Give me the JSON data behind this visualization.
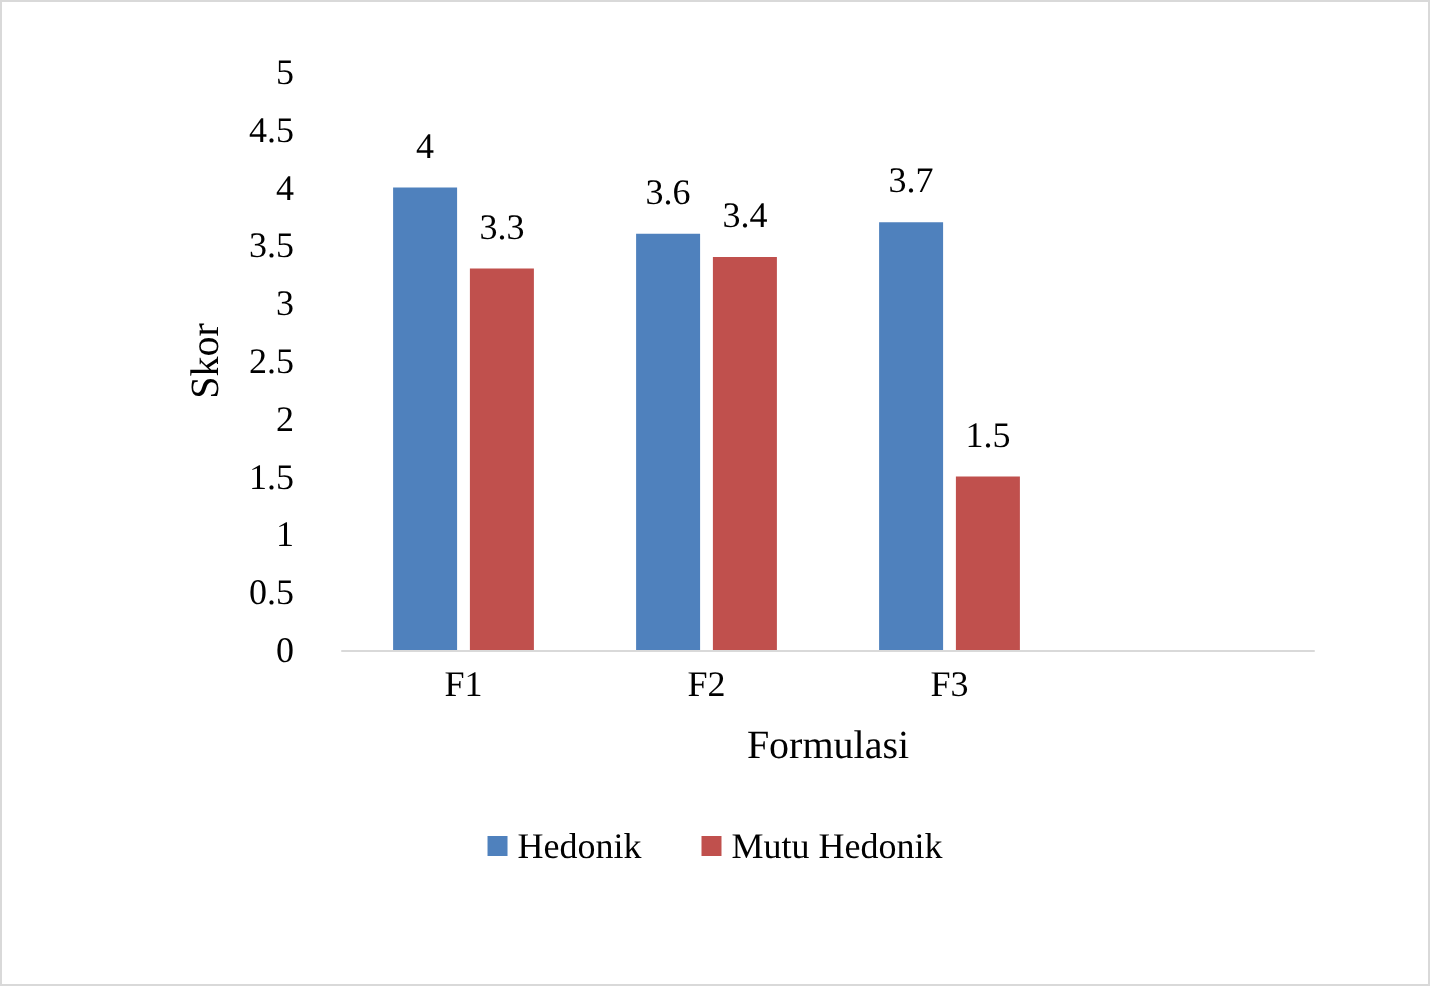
{
  "chart_data": {
    "type": "bar",
    "categories": [
      "F1",
      "F2",
      "F3",
      null
    ],
    "series": [
      {
        "name": "Hedonik",
        "color": "#4f81bd",
        "values": [
          4,
          3.6,
          3.7,
          null
        ]
      },
      {
        "name": "Mutu Hedonik",
        "color": "#c0504d",
        "values": [
          3.3,
          3.4,
          1.5,
          null
        ]
      }
    ],
    "xlabel": "Formulasi",
    "ylabel": "Skor",
    "ylim": [
      0,
      5
    ],
    "yticks": [
      0,
      0.5,
      1,
      1.5,
      2,
      2.5,
      3,
      3.5,
      4,
      4.5,
      5
    ],
    "data_labels": true,
    "legend": "bottom",
    "grid": false
  }
}
